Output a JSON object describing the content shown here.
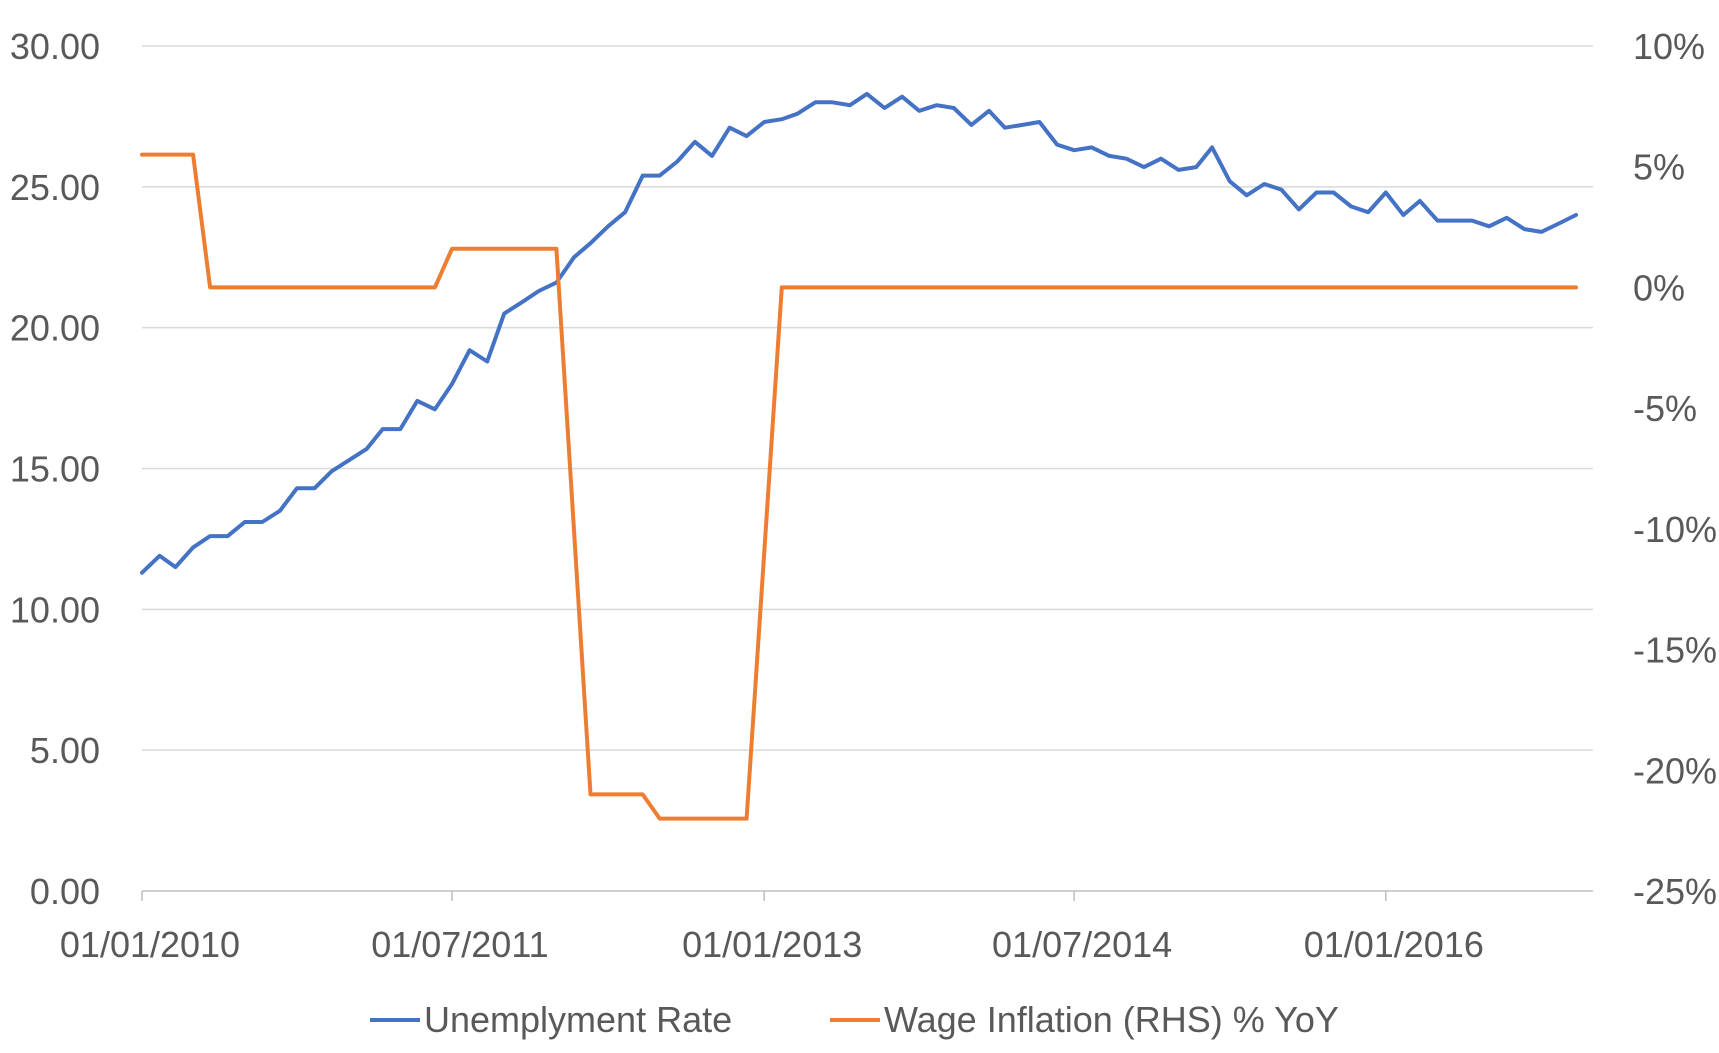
{
  "chart_data": {
    "type": "line",
    "title": "",
    "xlabel": "",
    "ylabel": "",
    "y2label": "",
    "x_tick_labels": [
      "01/01/2010",
      "01/07/2011",
      "01/01/2013",
      "01/07/2014",
      "01/01/2016"
    ],
    "x_tick_dates": [
      "2010-01-01",
      "2011-07-01",
      "2013-01-01",
      "2014-07-01",
      "2016-01-01"
    ],
    "x_range": [
      "2010-01-01",
      "2016-12-31"
    ],
    "y_left": {
      "range": [
        0,
        30
      ],
      "ticks": [
        "0.00",
        "5.00",
        "10.00",
        "15.00",
        "20.00",
        "25.00",
        "30.00"
      ]
    },
    "y_right": {
      "range": [
        -25,
        10
      ],
      "ticks": [
        "-25%",
        "-20%",
        "-15%",
        "-10%",
        "-5%",
        "0%",
        "5%",
        "10%"
      ]
    },
    "grid": "horizontal",
    "legend_position": "bottom",
    "colors": {
      "unemployment": "#4472C4",
      "wage": "#ED7D31",
      "grid": "#D9D9D9",
      "axis": "#BFBFBF",
      "text": "#595959"
    },
    "series": [
      {
        "name": "Unemplyment Rate",
        "axis": "left",
        "x": [
          "2010-01-01",
          "2010-02-01",
          "2010-03-01",
          "2010-04-01",
          "2010-05-01",
          "2010-06-01",
          "2010-07-01",
          "2010-08-01",
          "2010-09-01",
          "2010-10-01",
          "2010-11-01",
          "2010-12-01",
          "2011-01-01",
          "2011-02-01",
          "2011-03-01",
          "2011-04-01",
          "2011-05-01",
          "2011-06-01",
          "2011-07-01",
          "2011-08-01",
          "2011-09-01",
          "2011-10-01",
          "2011-11-01",
          "2011-12-01",
          "2012-01-01",
          "2012-02-01",
          "2012-03-01",
          "2012-04-01",
          "2012-05-01",
          "2012-06-01",
          "2012-07-01",
          "2012-08-01",
          "2012-09-01",
          "2012-10-01",
          "2012-11-01",
          "2012-12-01",
          "2013-01-01",
          "2013-02-01",
          "2013-03-01",
          "2013-04-01",
          "2013-05-01",
          "2013-06-01",
          "2013-07-01",
          "2013-08-01",
          "2013-09-01",
          "2013-10-01",
          "2013-11-01",
          "2013-12-01",
          "2014-01-01",
          "2014-02-01",
          "2014-03-01",
          "2014-04-01",
          "2014-05-01",
          "2014-06-01",
          "2014-07-01",
          "2014-08-01",
          "2014-09-01",
          "2014-10-01",
          "2014-11-01",
          "2014-12-01",
          "2015-01-01",
          "2015-02-01",
          "2015-03-01",
          "2015-04-01",
          "2015-05-01",
          "2015-06-01",
          "2015-07-01",
          "2015-08-01",
          "2015-09-01",
          "2015-10-01",
          "2015-11-01",
          "2015-12-01",
          "2016-01-01",
          "2016-02-01",
          "2016-03-01",
          "2016-04-01",
          "2016-05-01",
          "2016-06-01",
          "2016-07-01",
          "2016-08-01",
          "2016-09-01",
          "2016-10-01",
          "2016-11-01",
          "2016-12-01"
        ],
        "values": [
          11.3,
          11.9,
          11.5,
          12.2,
          12.6,
          12.6,
          13.1,
          13.1,
          13.5,
          14.3,
          14.3,
          14.9,
          15.3,
          15.7,
          16.4,
          16.4,
          17.4,
          17.1,
          18.0,
          19.2,
          18.8,
          20.5,
          20.9,
          21.3,
          21.6,
          22.5,
          23.0,
          23.6,
          24.1,
          25.4,
          25.4,
          25.9,
          26.6,
          26.1,
          27.1,
          26.8,
          27.3,
          27.4,
          27.6,
          28.0,
          28.0,
          27.9,
          28.3,
          27.8,
          28.2,
          27.7,
          27.9,
          27.8,
          27.2,
          27.7,
          27.1,
          27.2,
          27.3,
          26.5,
          26.3,
          26.4,
          26.1,
          26.0,
          25.7,
          26.0,
          25.6,
          25.7,
          26.4,
          25.2,
          24.7,
          25.1,
          24.9,
          24.2,
          24.8,
          24.8,
          24.3,
          24.1,
          24.8,
          24.0,
          24.5,
          23.8,
          23.8,
          23.8,
          23.6,
          23.9,
          23.5,
          23.4,
          23.7,
          24.0
        ]
      },
      {
        "name": "Wage Inflation (RHS) % YoY",
        "axis": "right",
        "x": [
          "2010-01-01",
          "2010-04-01",
          "2010-05-01",
          "2011-06-01",
          "2011-07-01",
          "2012-01-01",
          "2012-03-01",
          "2012-06-01",
          "2012-07-01",
          "2012-12-01",
          "2013-02-01",
          "2016-12-01"
        ],
        "values": [
          5.5,
          5.5,
          0,
          0,
          1.6,
          1.6,
          -21,
          -21,
          -22,
          -22,
          0,
          0
        ]
      }
    ]
  }
}
